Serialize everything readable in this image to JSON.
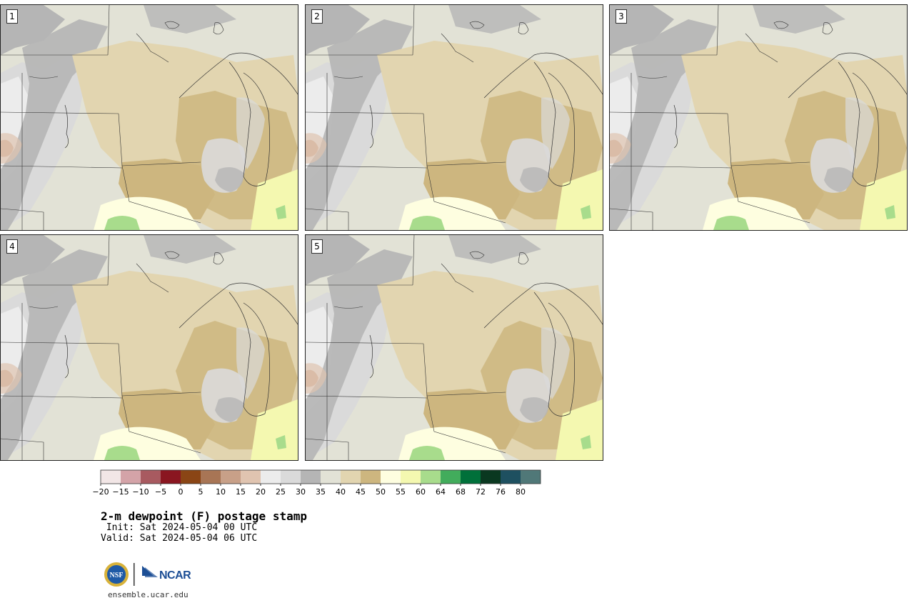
{
  "panels": [
    {
      "number": "1"
    },
    {
      "number": "2"
    },
    {
      "number": "3"
    },
    {
      "number": "4"
    },
    {
      "number": "5"
    }
  ],
  "colorbar": {
    "tick_labels": [
      "−20",
      "−15",
      "−10",
      "−5",
      "0",
      "5",
      "10",
      "15",
      "20",
      "25",
      "30",
      "35",
      "40",
      "45",
      "50",
      "55",
      "60",
      "64",
      "68",
      "72",
      "76",
      "80"
    ],
    "colors": [
      "#f2e6e6",
      "#d4a3a8",
      "#a85a60",
      "#8a1620",
      "#8a4515",
      "#a87555",
      "#c8a088",
      "#e0c4b0",
      "#ececec",
      "#dadada",
      "#b5b5b5",
      "#e2e2d6",
      "#e2d5b0",
      "#cdb67f",
      "#fefee0",
      "#f4f8b0",
      "#a8dc8c",
      "#42ac5c",
      "#00703a",
      "#0a3820",
      "#1e5060",
      "#507878"
    ]
  },
  "text": {
    "title": "2-m dewpoint (F) postage stamp",
    "init": " Init: Sat 2024-05-04 00 UTC",
    "valid": "Valid: Sat 2024-05-04 06 UTC",
    "url": "ensemble.ucar.edu",
    "nsf_logo_text": "NSF",
    "ncar_logo_text": "NCAR"
  }
}
